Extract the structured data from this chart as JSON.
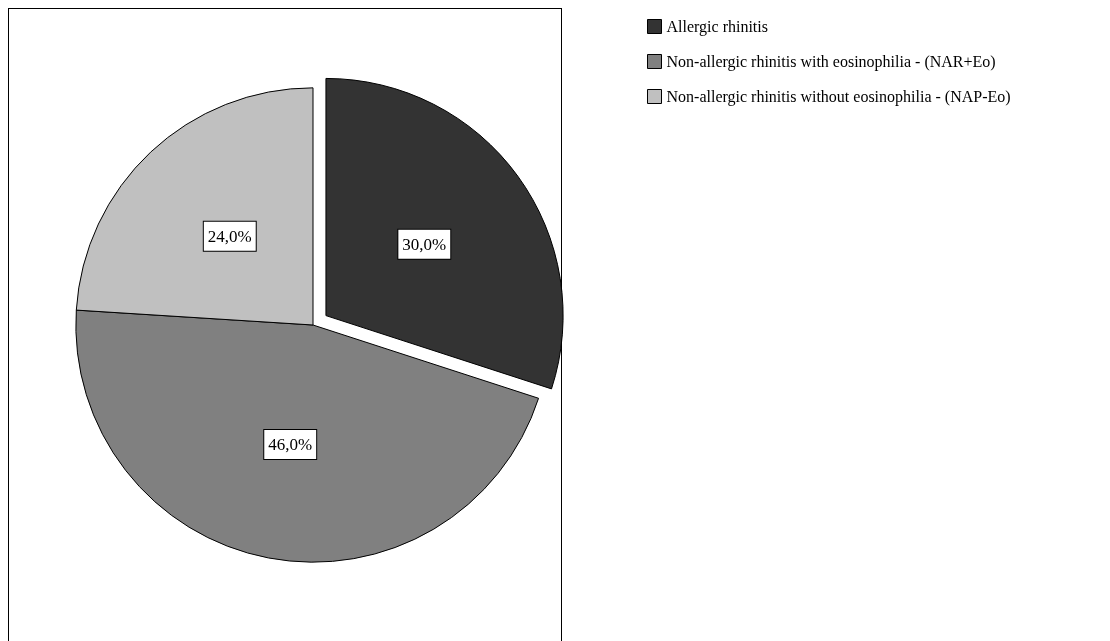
{
  "chart_data": {
    "type": "pie",
    "categories": [
      "Allergic rhinitis",
      "Non-allergic rhinitis with eosinophilia - (NAR+Eo)",
      "Non-allergic rhinitis without eosinophilia - (NAP-Eo)"
    ],
    "values": [
      30,
      46,
      24
    ],
    "value_labels": [
      "30,0%",
      "46,0%",
      "24,0%"
    ],
    "colors": [
      "#333333",
      "#808080",
      "#c0c0c0"
    ],
    "legend": "top right"
  }
}
